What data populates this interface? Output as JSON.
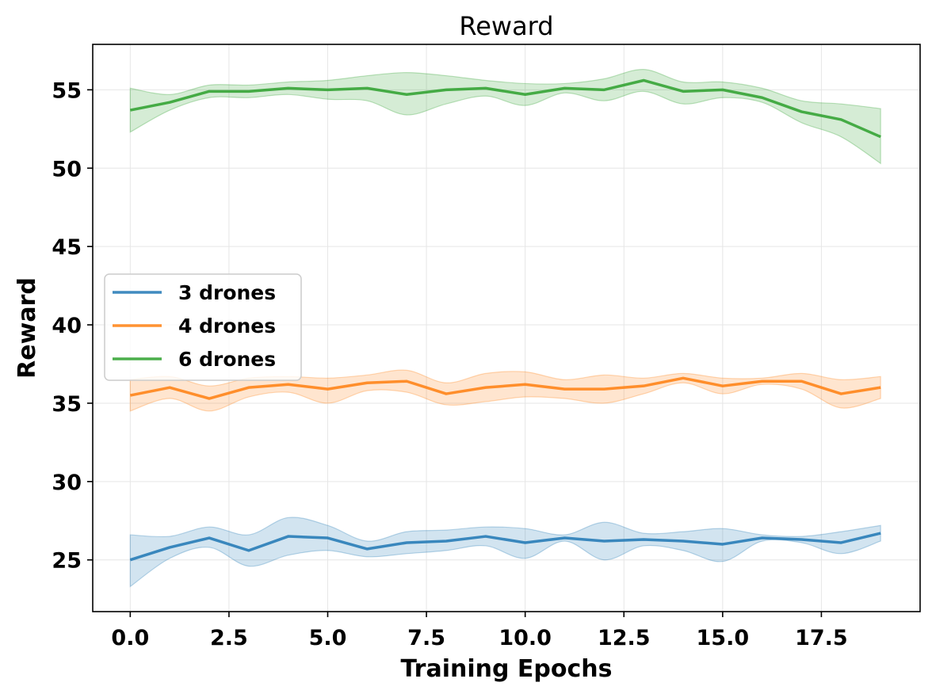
{
  "chart_data": {
    "type": "line",
    "title": "Reward",
    "xlabel": "Training Epochs",
    "ylabel": "Reward",
    "xlim": [
      -0.95,
      20.0
    ],
    "ylim": [
      21.7,
      57.9
    ],
    "xticks": [
      0.0,
      2.5,
      5.0,
      7.5,
      10.0,
      12.5,
      15.0,
      17.5
    ],
    "xtick_labels": [
      "0.0",
      "2.5",
      "5.0",
      "7.5",
      "10.0",
      "12.5",
      "15.0",
      "17.5"
    ],
    "yticks": [
      25,
      30,
      35,
      40,
      45,
      50,
      55
    ],
    "ytick_labels": [
      "25",
      "30",
      "35",
      "40",
      "45",
      "50",
      "55"
    ],
    "grid": true,
    "legend_position": "center-left",
    "x": [
      0,
      1,
      2,
      3,
      4,
      5,
      6,
      7,
      8,
      9,
      10,
      11,
      12,
      13,
      14,
      15,
      16,
      17,
      18,
      19
    ],
    "series": [
      {
        "name": "3 drones",
        "color": "#1f77b4",
        "values": [
          25.0,
          25.8,
          26.4,
          25.6,
          26.5,
          26.4,
          25.7,
          26.1,
          26.2,
          26.5,
          26.1,
          26.4,
          26.2,
          26.3,
          26.2,
          26.0,
          26.4,
          26.3,
          26.1,
          26.7
        ],
        "upper": [
          26.6,
          26.5,
          27.1,
          26.6,
          27.7,
          27.2,
          26.2,
          26.8,
          26.9,
          27.1,
          27.0,
          26.6,
          27.4,
          26.7,
          26.8,
          27.0,
          26.6,
          26.5,
          26.8,
          27.2
        ],
        "lower": [
          23.3,
          25.1,
          25.8,
          24.6,
          25.3,
          25.6,
          25.2,
          25.4,
          25.6,
          25.9,
          25.1,
          26.2,
          25.0,
          25.9,
          25.6,
          24.9,
          26.2,
          26.1,
          25.4,
          26.2
        ]
      },
      {
        "name": "4 drones",
        "color": "#ff7f0e",
        "values": [
          35.5,
          36.0,
          35.3,
          36.0,
          36.2,
          35.9,
          36.3,
          36.4,
          35.6,
          36.0,
          36.2,
          35.9,
          35.9,
          36.1,
          36.6,
          36.1,
          36.4,
          36.4,
          35.6,
          36.0
        ],
        "upper": [
          36.5,
          36.7,
          36.1,
          36.6,
          36.7,
          36.6,
          36.8,
          37.1,
          36.3,
          36.9,
          37.0,
          36.5,
          36.8,
          36.6,
          36.9,
          36.6,
          36.6,
          36.9,
          36.5,
          36.7
        ],
        "lower": [
          34.5,
          35.3,
          34.5,
          35.4,
          35.7,
          35.0,
          35.8,
          35.7,
          34.9,
          35.1,
          35.4,
          35.3,
          35.0,
          35.6,
          36.3,
          35.6,
          36.2,
          35.9,
          34.7,
          35.3
        ]
      },
      {
        "name": "6 drones",
        "color": "#2ca02c",
        "values": [
          53.7,
          54.2,
          54.9,
          54.9,
          55.1,
          55.0,
          55.1,
          54.7,
          55.0,
          55.1,
          54.7,
          55.1,
          55.0,
          55.6,
          54.9,
          55.0,
          54.5,
          53.6,
          53.1,
          52.0
        ],
        "upper": [
          55.1,
          54.7,
          55.3,
          55.3,
          55.5,
          55.6,
          55.9,
          56.1,
          55.9,
          55.6,
          55.4,
          55.4,
          55.7,
          56.3,
          55.5,
          55.5,
          55.1,
          54.3,
          54.1,
          53.8
        ],
        "lower": [
          52.3,
          53.7,
          54.5,
          54.5,
          54.7,
          54.4,
          54.3,
          53.4,
          54.1,
          54.6,
          54.0,
          54.8,
          54.3,
          54.9,
          54.1,
          54.5,
          54.2,
          52.9,
          52.0,
          50.3
        ]
      }
    ]
  }
}
